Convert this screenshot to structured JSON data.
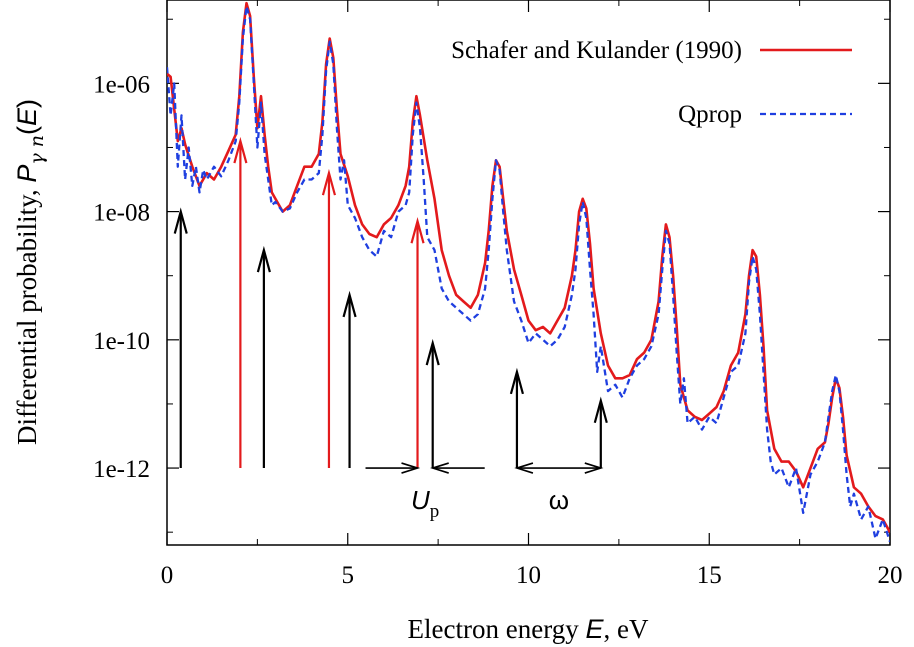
{
  "chart_data": {
    "type": "line",
    "xlabel": "Electron energy E, eV",
    "ylabel": "Differential probability, Pγn(E)",
    "xlim": [
      0,
      20
    ],
    "ylim_log10": [
      -13.2,
      -4.7
    ],
    "y_scale": "log",
    "x_ticks": [
      0,
      5,
      10,
      15,
      20
    ],
    "x_tick_labels": [
      "0",
      "5",
      "10",
      "15",
      "20"
    ],
    "y_ticks": [
      1e-12,
      1e-10,
      1e-08,
      1e-06
    ],
    "y_tick_labels": [
      "1e-12",
      "1e-10",
      "1e-08",
      "1e-06"
    ],
    "legend_position": "top-right",
    "series": [
      {
        "name": "Schafer and Kulander (1990)",
        "color": "#e31a1c",
        "style": "solid",
        "x": [
          0,
          0.1,
          0.2,
          0.3,
          0.4,
          0.5,
          0.7,
          0.9,
          1.1,
          1.3,
          1.5,
          1.7,
          1.9,
          2.0,
          2.1,
          2.2,
          2.3,
          2.4,
          2.5,
          2.6,
          2.7,
          2.8,
          2.9,
          3.0,
          3.2,
          3.4,
          3.6,
          3.8,
          4.0,
          4.2,
          4.3,
          4.4,
          4.5,
          4.6,
          4.7,
          4.8,
          5.0,
          5.2,
          5.4,
          5.6,
          5.8,
          6.0,
          6.2,
          6.4,
          6.6,
          6.7,
          6.8,
          6.9,
          7.0,
          7.2,
          7.4,
          7.6,
          7.8,
          8.0,
          8.2,
          8.4,
          8.6,
          8.8,
          8.9,
          9.0,
          9.1,
          9.2,
          9.3,
          9.4,
          9.6,
          9.8,
          10.0,
          10.2,
          10.4,
          10.6,
          10.8,
          11.0,
          11.2,
          11.3,
          11.4,
          11.5,
          11.6,
          11.7,
          11.8,
          12.0,
          12.2,
          12.4,
          12.6,
          12.8,
          13.0,
          13.2,
          13.4,
          13.6,
          13.7,
          13.8,
          13.9,
          14.0,
          14.1,
          14.2,
          14.4,
          14.6,
          14.8,
          15.0,
          15.2,
          15.4,
          15.6,
          15.8,
          16.0,
          16.1,
          16.2,
          16.3,
          16.4,
          16.5,
          16.6,
          16.8,
          17.0,
          17.2,
          17.4,
          17.6,
          17.8,
          18.0,
          18.2,
          18.3,
          18.4,
          18.5,
          18.6,
          18.7,
          18.8,
          19.0,
          19.2,
          19.4,
          19.6,
          19.8,
          20.0
        ],
        "y_log10": [
          -5.85,
          -5.9,
          -6.4,
          -6.9,
          -6.7,
          -6.95,
          -7.3,
          -7.6,
          -7.4,
          -7.5,
          -7.3,
          -7.05,
          -6.8,
          -6.2,
          -5.2,
          -4.75,
          -4.95,
          -5.9,
          -6.7,
          -6.2,
          -6.8,
          -7.3,
          -7.7,
          -7.8,
          -8.0,
          -7.9,
          -7.6,
          -7.3,
          -7.3,
          -7.1,
          -6.6,
          -5.7,
          -5.3,
          -5.6,
          -6.4,
          -7.1,
          -7.45,
          -7.9,
          -8.2,
          -8.35,
          -8.4,
          -8.2,
          -8.1,
          -7.9,
          -7.6,
          -7.3,
          -6.6,
          -6.2,
          -6.5,
          -7.2,
          -7.8,
          -8.6,
          -9.0,
          -9.3,
          -9.4,
          -9.5,
          -9.3,
          -8.8,
          -8.3,
          -7.6,
          -7.2,
          -7.3,
          -7.8,
          -8.3,
          -8.9,
          -9.3,
          -9.7,
          -9.85,
          -9.8,
          -9.9,
          -9.7,
          -9.5,
          -9.0,
          -8.6,
          -8.0,
          -7.8,
          -7.95,
          -8.5,
          -9.2,
          -9.9,
          -10.4,
          -10.6,
          -10.6,
          -10.55,
          -10.3,
          -10.2,
          -10.0,
          -9.4,
          -8.7,
          -8.2,
          -8.4,
          -9.0,
          -9.8,
          -10.7,
          -11.1,
          -11.2,
          -11.25,
          -11.15,
          -11.05,
          -10.8,
          -10.4,
          -10.2,
          -9.6,
          -9.0,
          -8.6,
          -8.7,
          -9.3,
          -10.1,
          -11.1,
          -11.7,
          -11.9,
          -11.9,
          -12.05,
          -12.3,
          -12.0,
          -11.7,
          -11.6,
          -11.3,
          -10.9,
          -10.6,
          -10.75,
          -11.2,
          -11.8,
          -12.3,
          -12.4,
          -12.6,
          -12.75,
          -12.8,
          -13.0
        ]
      },
      {
        "name": "Qprop",
        "color": "#1f3fe0",
        "style": "dashed",
        "x": [
          0,
          0.1,
          0.2,
          0.3,
          0.4,
          0.5,
          0.6,
          0.7,
          0.8,
          0.9,
          1.0,
          1.1,
          1.3,
          1.5,
          1.7,
          1.9,
          2.0,
          2.1,
          2.2,
          2.3,
          2.4,
          2.5,
          2.6,
          2.7,
          2.8,
          2.9,
          3.0,
          3.2,
          3.4,
          3.6,
          3.8,
          4.0,
          4.2,
          4.3,
          4.4,
          4.5,
          4.6,
          4.7,
          4.8,
          4.9,
          5.0,
          5.2,
          5.4,
          5.6,
          5.8,
          6.0,
          6.2,
          6.4,
          6.6,
          6.7,
          6.8,
          6.9,
          7.0,
          7.1,
          7.2,
          7.4,
          7.6,
          7.8,
          8.0,
          8.2,
          8.4,
          8.6,
          8.8,
          8.9,
          9.0,
          9.1,
          9.2,
          9.3,
          9.4,
          9.5,
          9.6,
          9.8,
          10.0,
          10.2,
          10.4,
          10.6,
          10.8,
          11.0,
          11.2,
          11.3,
          11.4,
          11.5,
          11.6,
          11.7,
          11.8,
          11.9,
          12.0,
          12.2,
          12.4,
          12.6,
          12.8,
          13.0,
          13.2,
          13.4,
          13.6,
          13.7,
          13.8,
          13.9,
          14.0,
          14.1,
          14.2,
          14.3,
          14.4,
          14.6,
          14.8,
          15.0,
          15.2,
          15.4,
          15.6,
          15.8,
          16.0,
          16.1,
          16.2,
          16.3,
          16.4,
          16.5,
          16.6,
          16.7,
          16.8,
          17.0,
          17.2,
          17.4,
          17.6,
          17.8,
          18.0,
          18.2,
          18.3,
          18.4,
          18.5,
          18.6,
          18.7,
          18.8,
          18.9,
          19.0,
          19.2,
          19.4,
          19.6,
          19.8,
          20.0
        ],
        "y_log10": [
          -5.75,
          -6.5,
          -6.0,
          -7.3,
          -6.5,
          -7.5,
          -7.0,
          -7.6,
          -7.3,
          -7.7,
          -7.35,
          -7.5,
          -7.3,
          -7.45,
          -7.2,
          -6.9,
          -6.3,
          -5.3,
          -4.8,
          -5.0,
          -6.0,
          -7.0,
          -6.3,
          -7.1,
          -7.5,
          -7.9,
          -7.85,
          -8.0,
          -7.95,
          -7.7,
          -7.5,
          -7.5,
          -7.4,
          -6.8,
          -5.8,
          -5.35,
          -5.7,
          -6.7,
          -7.5,
          -7.2,
          -7.9,
          -8.1,
          -8.4,
          -8.6,
          -8.7,
          -8.3,
          -8.4,
          -8.0,
          -7.9,
          -7.7,
          -6.8,
          -6.3,
          -6.7,
          -7.5,
          -8.4,
          -8.6,
          -9.2,
          -9.4,
          -9.5,
          -9.6,
          -9.7,
          -9.6,
          -9.2,
          -8.6,
          -7.8,
          -7.2,
          -7.35,
          -8.0,
          -8.6,
          -9.0,
          -9.4,
          -9.7,
          -10.05,
          -9.9,
          -10.0,
          -10.1,
          -10.0,
          -9.8,
          -9.3,
          -8.9,
          -8.2,
          -7.85,
          -8.1,
          -8.9,
          -9.6,
          -10.5,
          -10.1,
          -10.8,
          -10.7,
          -10.9,
          -10.6,
          -10.4,
          -10.3,
          -10.1,
          -9.6,
          -8.9,
          -8.3,
          -8.5,
          -9.3,
          -10.2,
          -11.0,
          -10.6,
          -11.3,
          -11.2,
          -11.4,
          -11.2,
          -11.3,
          -10.9,
          -10.5,
          -10.4,
          -9.9,
          -9.1,
          -8.7,
          -8.9,
          -9.6,
          -10.5,
          -11.4,
          -11.9,
          -12.1,
          -12.0,
          -12.3,
          -12.0,
          -12.7,
          -12.1,
          -11.9,
          -11.6,
          -11.2,
          -10.8,
          -10.55,
          -10.8,
          -11.4,
          -12.1,
          -12.6,
          -12.4,
          -12.8,
          -12.6,
          -13.1,
          -12.8,
          -13.15
        ]
      }
    ],
    "annotations": {
      "arrows": [
        {
          "x": 0.38,
          "color": "#000000",
          "y_tip_log10": -8.0
        },
        {
          "x": 2.03,
          "color": "#e31a1c",
          "y_tip_log10": -6.9
        },
        {
          "x": 2.68,
          "color": "#000000",
          "y_tip_log10": -8.6
        },
        {
          "x": 4.48,
          "color": "#e31a1c",
          "y_tip_log10": -7.4
        },
        {
          "x": 5.05,
          "color": "#000000",
          "y_tip_log10": -9.3
        },
        {
          "x": 6.93,
          "color": "#e31a1c",
          "y_tip_log10": -8.15
        },
        {
          "x": 7.35,
          "color": "#000000",
          "y_tip_log10": -10.05
        },
        {
          "x": 9.68,
          "color": "#000000",
          "y_tip_log10": -10.5
        },
        {
          "x": 12.0,
          "color": "#000000",
          "y_tip_log10": -10.95
        }
      ],
      "spans": [
        {
          "label": "U",
          "subscript": "p",
          "x_from": 6.93,
          "x_to": 7.35
        },
        {
          "label": "ω",
          "subscript": "",
          "x_from": 9.68,
          "x_to": 12.0
        }
      ]
    }
  }
}
